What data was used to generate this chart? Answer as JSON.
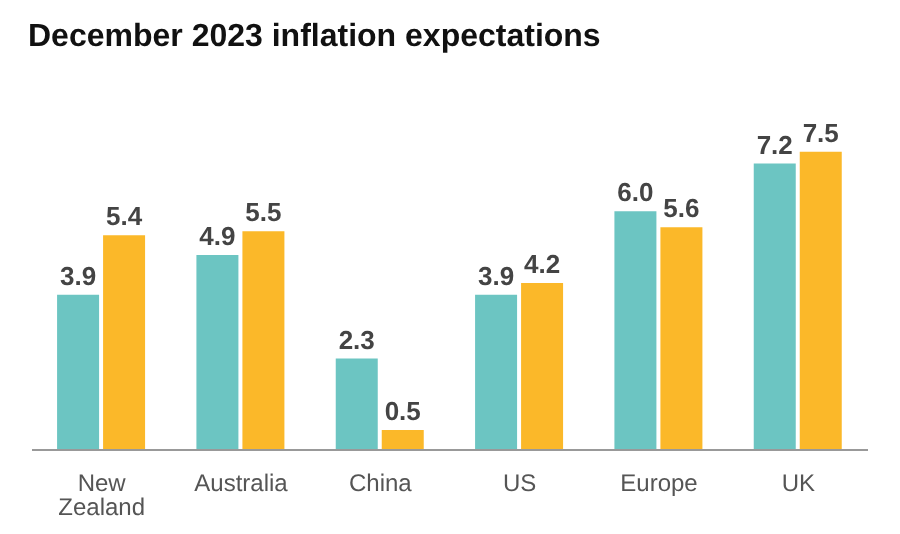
{
  "chart_data": {
    "type": "bar",
    "title": "December 2023 inflation expectations",
    "categories": [
      "New Zealand",
      "Australia",
      "China",
      "US",
      "Europe",
      "UK"
    ],
    "series": [
      {
        "color": "#6cc5c2",
        "values": [
          3.9,
          4.9,
          2.3,
          3.9,
          6.0,
          7.2
        ],
        "value_labels": [
          "3.9",
          "4.9",
          "2.3",
          "3.9",
          "6.0",
          "7.2"
        ]
      },
      {
        "color": "#fbb829",
        "values": [
          5.4,
          5.5,
          0.5,
          4.2,
          5.6,
          7.5
        ],
        "value_labels": [
          "5.4",
          "5.5",
          "0.5",
          "4.2",
          "5.6",
          "7.5"
        ]
      }
    ],
    "legend": false,
    "grid": false
  }
}
